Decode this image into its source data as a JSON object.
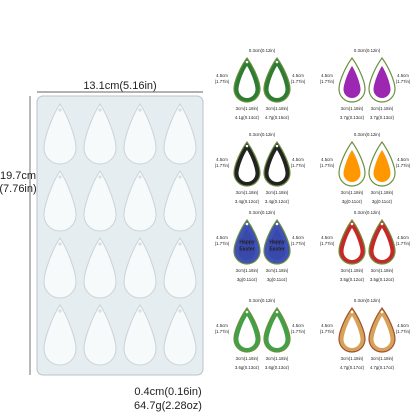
{
  "mold": {
    "width": "13.1cm(5.16in)",
    "height": [
      "19.7cm",
      "(7.76in)"
    ],
    "thickness": "0.4cm(0.16in)",
    "weight": "64.7g(2.28oz)"
  },
  "panels": [
    {
      "top": "0.3cm(0.12in)",
      "left": [
        "4.5cm",
        "(1.77in)"
      ],
      "right": [
        "4.5cm",
        "(1.77in)"
      ],
      "bottoms": [
        "3cm(1.18in)",
        "3cm(1.18in)"
      ],
      "weights": [
        "4.1g(0.14oz)",
        "4.7g(0.16oz)"
      ]
    },
    {
      "top": "0.3cm(0.12in)",
      "left": [
        "4.5cm",
        "(1.77in)"
      ],
      "right": [
        "4.5cm",
        "(1.77in)"
      ],
      "bottoms": [
        "3cm(1.18in)",
        "3cm(1.18in)"
      ],
      "weights": [
        "3.7g(0.13oz)",
        "3.7g(0.13oz)"
      ]
    },
    {
      "top": "0.3cm(0.12in)",
      "left": [
        "4.5cm",
        "(1.77in)"
      ],
      "right": [
        "4.5cm",
        "(1.77in)"
      ],
      "bottoms": [
        "3cm(1.18in)",
        "3cm(1.18in)"
      ],
      "weights": [
        "3.4g(0.12oz)",
        "3.4g(0.12oz)"
      ]
    },
    {
      "top": "0.3cm(0.12in)",
      "left": [
        "4.5cm",
        "(1.77in)"
      ],
      "right": [
        "4.5cm",
        "(1.77in)"
      ],
      "bottoms": [
        "3cm(1.18in)",
        "3cm(1.18in)"
      ],
      "weights": [
        "3g(0.11oz)",
        "3g(0.11oz)"
      ]
    },
    {
      "top": "0.3cm(0.12in)",
      "left": [
        "4.5cm",
        "(1.77in)"
      ],
      "right": [
        "4.5cm",
        "(1.77in)"
      ],
      "bottoms": [
        "3cm(1.18in)",
        "3cm(1.18in)"
      ],
      "weights": [
        "3g(0.11oz)",
        "3g(0.11oz)"
      ],
      "label": [
        "Happy",
        "Easter"
      ]
    },
    {
      "top": "0.3cm(0.12in)",
      "left": [
        "4.5cm",
        "(1.77in)"
      ],
      "right": [
        "4.5cm",
        "(1.77in)"
      ],
      "bottoms": [
        "3cm(1.18in)",
        "3cm(1.18in)"
      ],
      "weights": [
        "3.5g(0.12oz)",
        "3.5g(0.12oz)"
      ]
    },
    {
      "top": "0.3cm(0.12in)",
      "left": [
        "4.5cm",
        "(1.77in)"
      ],
      "right": [
        "4.5cm",
        "(1.77in)"
      ],
      "bottoms": [
        "3cm(1.18in)",
        "3cm(1.18in)"
      ],
      "weights": [
        "3.6g(0.13oz)",
        "3.6g(0.13oz)"
      ]
    },
    {
      "top": "0.3cm(0.12in)",
      "left": [
        "4.5cm",
        "(1.77in)"
      ],
      "right": [
        "4.5cm",
        "(1.77in)"
      ],
      "bottoms": [
        "3cm(1.18in)",
        "3cm(1.18in)"
      ],
      "weights": [
        "4.7g(0.17oz)",
        "4.7g(0.17oz)"
      ]
    }
  ]
}
